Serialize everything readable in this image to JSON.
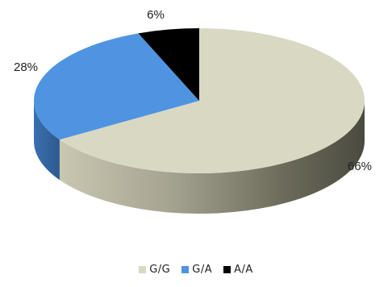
{
  "chart_data": {
    "type": "pie",
    "style": "3d",
    "categories": [
      "G/G",
      "G/A",
      "A/A"
    ],
    "values": [
      66,
      28,
      6
    ],
    "labels": [
      "66%",
      "28%",
      "6%"
    ],
    "colors": [
      "#d9d8c3",
      "#4f94e0",
      "#000000"
    ],
    "legend_position": "bottom"
  }
}
